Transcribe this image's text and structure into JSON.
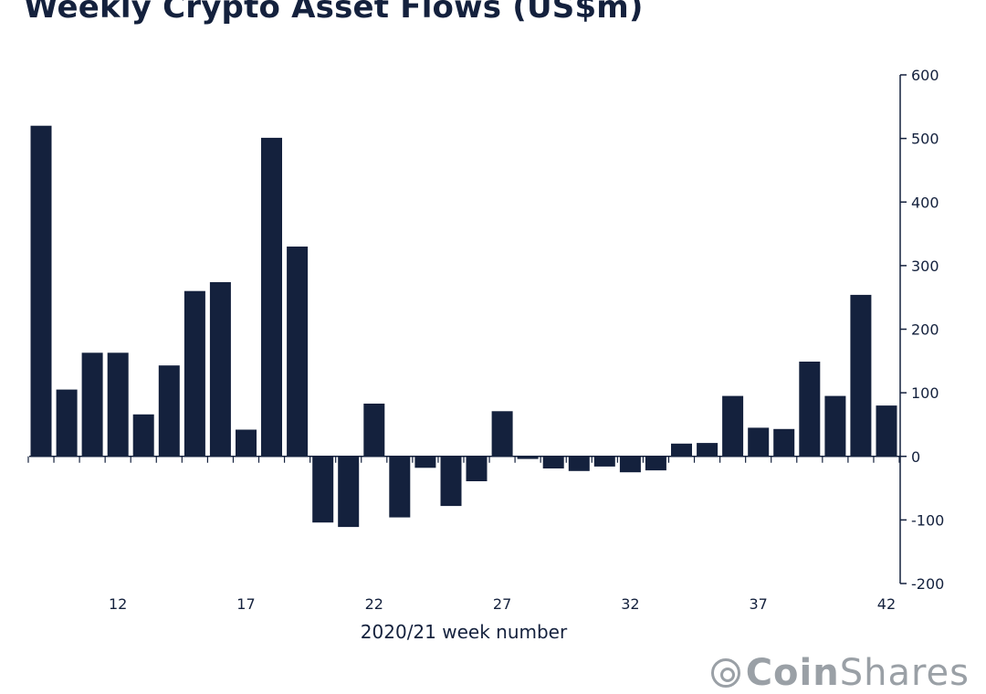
{
  "chart_data": {
    "type": "bar",
    "title": "Weekly Crypto Asset Flows (US$m)",
    "xlabel": "2020/21 week number",
    "ylabel": "",
    "ylim": [
      -200,
      600
    ],
    "yticks": [
      600,
      500,
      400,
      300,
      200,
      100,
      0,
      -100,
      -200
    ],
    "y_axis_side": "right",
    "xticks": [
      12,
      17,
      22,
      27,
      32,
      37,
      42
    ],
    "x": [
      9,
      10,
      11,
      12,
      13,
      14,
      15,
      16,
      17,
      18,
      19,
      20,
      21,
      22,
      23,
      24,
      25,
      26,
      27,
      28,
      29,
      30,
      31,
      32,
      33,
      34,
      35,
      36,
      37,
      38,
      39,
      40,
      41,
      42
    ],
    "values": [
      520,
      105,
      163,
      163,
      66,
      143,
      260,
      274,
      42,
      501,
      330,
      -104,
      -111,
      83,
      -96,
      -18,
      -78,
      -39,
      71,
      -4,
      -19,
      -23,
      -16,
      -25,
      -22,
      20,
      21,
      95,
      45,
      43,
      149,
      95,
      254,
      80
    ],
    "bar_color": "#14213d"
  },
  "branding": {
    "logo_prefix": "Coin",
    "logo_suffix": "Shares"
  }
}
